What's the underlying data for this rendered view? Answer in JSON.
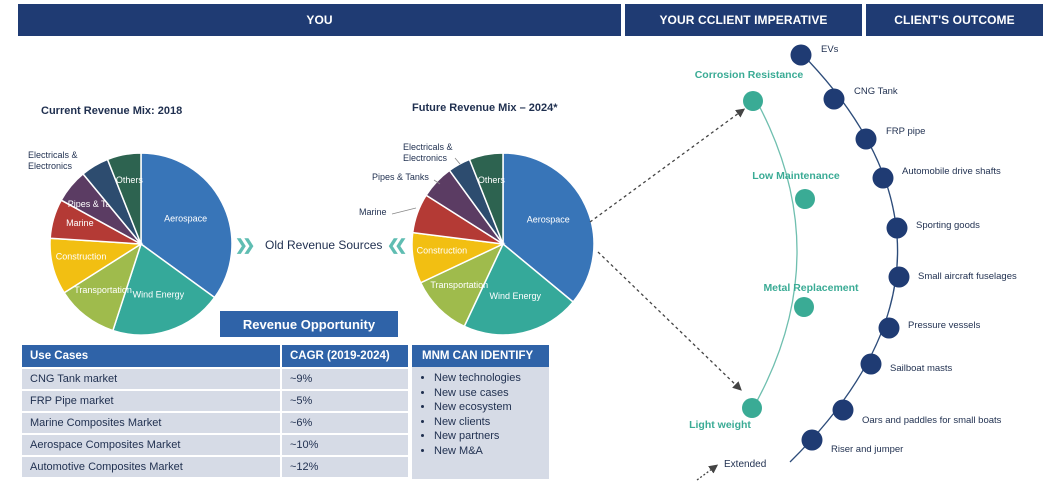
{
  "headers": {
    "you": "YOU",
    "imperative": "YOUR CCLIENT IMPERATIVE",
    "outcome": "CLIENT'S OUTCOME"
  },
  "current_pie_title": "Current Revenue Mix: 2018",
  "future_pie_title": "Future Revenue Mix – 2024*",
  "old_revenue_sources": "Old Revenue Sources",
  "revenue_opportunity": "Revenue Opportunity",
  "chart_data": [
    {
      "type": "pie",
      "title": "Current Revenue Mix: 2018",
      "categories": [
        "Aerospace",
        "Wind Energy",
        "Transportation",
        "Construction",
        "Marine",
        "Pipes & Tanks",
        "Electricals & Electronics",
        "Others"
      ],
      "values": [
        35,
        20,
        11,
        10,
        7,
        6,
        5,
        6
      ],
      "colors": [
        "#3875b8",
        "#35a99a",
        "#9fbb4c",
        "#f2bf12",
        "#b43a35",
        "#5b3c63",
        "#2d4c6f",
        "#2d6350"
      ]
    },
    {
      "type": "pie",
      "title": "Future Revenue Mix – 2024*",
      "categories": [
        "Aerospace",
        "Wind Energy",
        "Transportation",
        "Construction",
        "Marine",
        "Pipes & Tanks",
        "Electricals & Electronics",
        "Others"
      ],
      "values": [
        36,
        21,
        11,
        9,
        7,
        6,
        4,
        6
      ],
      "colors": [
        "#3875b8",
        "#35a99a",
        "#9fbb4c",
        "#f2bf12",
        "#b43a35",
        "#5b3c63",
        "#2d4c6f",
        "#2d6350"
      ]
    }
  ],
  "table": {
    "headers": [
      "Use Cases",
      "CAGR (2019-2024)"
    ],
    "rows": [
      [
        "CNG Tank market",
        "~9%"
      ],
      [
        "FRP Pipe market",
        "~5%"
      ],
      [
        "Marine Composites Market",
        "~6%"
      ],
      [
        "Aerospace Composites Market",
        "~10%"
      ],
      [
        "Automotive Composites Market",
        "~12%"
      ]
    ]
  },
  "mnm": {
    "title": "MNM CAN IDENTIFY",
    "items": [
      "New technologies",
      "New use cases",
      "New ecosystem",
      "New clients",
      "New partners",
      "New M&A"
    ]
  },
  "imperatives": [
    "Corrosion Resistance",
    "Low Maintenance",
    "Metal Replacement",
    "Light weight"
  ],
  "outcomes": [
    "EVs",
    "CNG Tank",
    "FRP pipe",
    "Automobile drive shafts",
    "Sporting goods",
    "Small aircraft fuselages",
    "Pressure vessels",
    "Sailboat masts",
    "Oars and paddles for small boats",
    "Riser and jumper"
  ],
  "extended": "Extended",
  "colors": {
    "header": "#1f3b73",
    "accent_blue": "#2f63a8",
    "teal": "#3aab95",
    "navy_dot": "#1f3b73",
    "cell": "#d6dbe6"
  }
}
